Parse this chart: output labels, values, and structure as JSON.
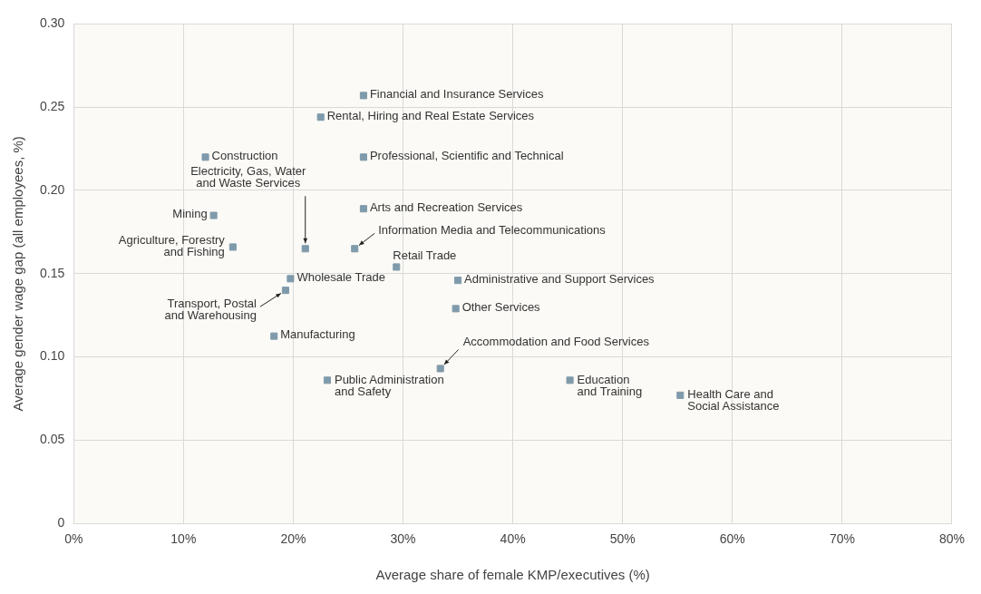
{
  "chart_data": {
    "type": "scatter",
    "xlabel": "Average share of female KMP/executives (%)",
    "ylabel": "Average gender wage gap (all employees, %)",
    "x": [
      26.4,
      22.5,
      12.0,
      26.4,
      26.4,
      12.75,
      21.1,
      25.6,
      14.5,
      29.4,
      19.75,
      35.0,
      19.3,
      34.8,
      18.25,
      33.4,
      23.1,
      45.2,
      55.25
    ],
    "values": [
      0.257,
      0.244,
      0.22,
      0.22,
      0.189,
      0.185,
      0.165,
      0.165,
      0.166,
      0.154,
      0.147,
      0.146,
      0.14,
      0.129,
      0.1125,
      0.093,
      0.086,
      0.086,
      0.077
    ],
    "color": "#7f9aab",
    "marker": "square",
    "grid": true,
    "xlim": [
      0,
      80
    ],
    "xticks": [
      {
        "value": 0,
        "label": "0%"
      },
      {
        "value": 10,
        "label": "10%"
      },
      {
        "value": 20,
        "label": "20%"
      },
      {
        "value": 30,
        "label": "30%"
      },
      {
        "value": 40,
        "label": "40%"
      },
      {
        "value": 50,
        "label": "50%"
      },
      {
        "value": 60,
        "label": "60%"
      },
      {
        "value": 70,
        "label": "70%"
      },
      {
        "value": 80,
        "label": "80%"
      }
    ],
    "ylim": [
      0,
      0.3
    ],
    "yticks": [
      0,
      0.05,
      {
        "value": 0.1,
        "label": "0.10"
      },
      {
        "value": 0.15,
        "label": "0.15"
      },
      {
        "value": 0.2,
        "label": "0.20"
      },
      {
        "value": 0.25,
        "label": "0.25"
      },
      {
        "value": 0.3,
        "label": "0.30"
      }
    ],
    "annotations": [
      {
        "text": "Financial and Insurance Services",
        "x": 26.4,
        "y": 0.257
      },
      {
        "text": "Rental, Hiring and Real Estate Services",
        "x": 22.5,
        "y": 0.244
      },
      {
        "text": "Construction",
        "x": 12.0,
        "y": 0.22
      },
      {
        "text": "Professional, Scientific and Technical",
        "x": 26.4,
        "y": 0.22
      },
      {
        "text": "Arts and Recreation Services",
        "x": 26.4,
        "y": 0.189
      },
      {
        "text": "Mining",
        "x": 12.75,
        "y": 0.185
      },
      {
        "text": "Electricity, Gas, Water\nand Waste Services",
        "x": 21.1,
        "y": 0.165
      },
      {
        "text": "Information Media and Telecommunications",
        "x": 25.6,
        "y": 0.165
      },
      {
        "text": "Agriculture, Forestry\nand Fishing",
        "x": 14.5,
        "y": 0.166
      },
      {
        "text": "Retail Trade",
        "x": 29.4,
        "y": 0.154
      },
      {
        "text": "Wholesale Trade",
        "x": 19.75,
        "y": 0.147
      },
      {
        "text": "Administrative and Support Services",
        "x": 35.0,
        "y": 0.146
      },
      {
        "text": "Transport, Postal\nand Warehousing",
        "x": 19.3,
        "y": 0.14
      },
      {
        "text": "Other Services",
        "x": 34.8,
        "y": 0.129
      },
      {
        "text": "Manufacturing",
        "x": 18.25,
        "y": 0.1125
      },
      {
        "text": "Accommodation and Food Services",
        "x": 33.4,
        "y": 0.093
      },
      {
        "text": "Public Administration\nand Safety",
        "x": 23.1,
        "y": 0.086
      },
      {
        "text": "Education\nand Training",
        "x": 45.2,
        "y": 0.086
      },
      {
        "text": "Health Care and\nSocial Assistance",
        "x": 55.25,
        "y": 0.077
      }
    ]
  }
}
